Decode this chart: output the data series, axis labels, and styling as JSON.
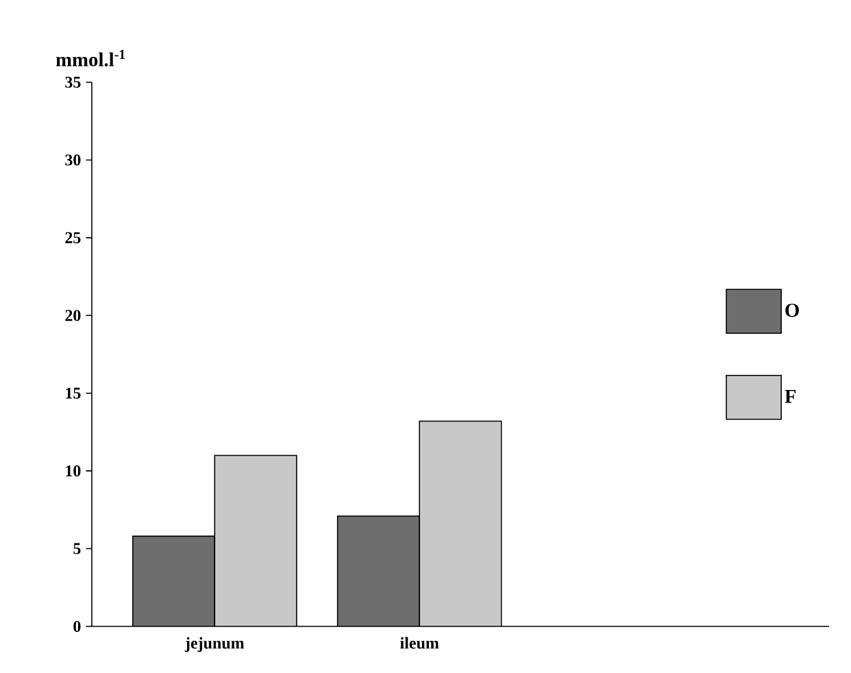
{
  "chart_data": {
    "type": "bar",
    "ylabel": "mmol.l$^{-1}$",
    "categories": [
      "jejunum",
      "ileum"
    ],
    "series": [
      {
        "name": "O",
        "color": "#6e6e6e",
        "values": [
          5.8,
          7.1
        ]
      },
      {
        "name": "F",
        "color": "#c8c8c8",
        "values": [
          11.0,
          13.2
        ]
      }
    ],
    "ylim": [
      0,
      35
    ],
    "yticks": [
      0,
      5,
      10,
      15,
      20,
      25,
      30,
      35
    ],
    "legend": "right",
    "grid": false
  }
}
